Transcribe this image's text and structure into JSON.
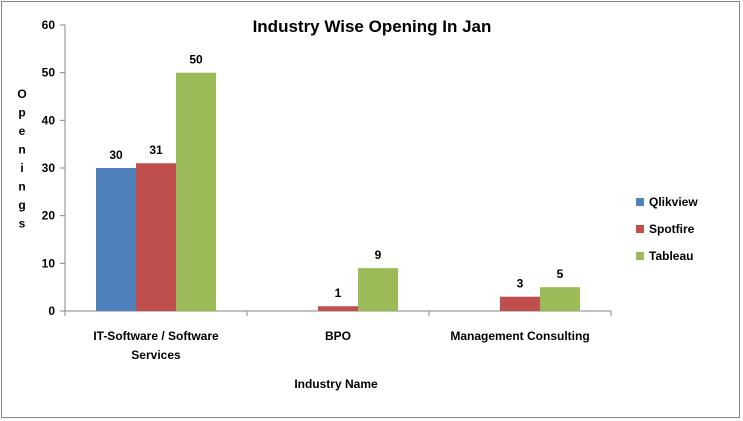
{
  "chart_data": {
    "type": "bar",
    "title": "Industry Wise Opening In Jan",
    "xlabel": "Industry Name",
    "ylabel": "Openings",
    "ylim": [
      0,
      60
    ],
    "yticks": [
      "0",
      "10",
      "20",
      "30",
      "40",
      "50",
      "60"
    ],
    "categories": [
      [
        "IT-Software / Software",
        "Services"
      ],
      [
        "BPO"
      ],
      [
        "Management Consulting"
      ]
    ],
    "series": [
      {
        "name": "Qlikview",
        "color": "#4F81BD",
        "values": [
          30,
          null,
          null
        ]
      },
      {
        "name": "Spotfire",
        "color": "#C0504D",
        "values": [
          31,
          1,
          3
        ]
      },
      {
        "name": "Tableau",
        "color": "#9BBB59",
        "values": [
          50,
          9,
          5
        ]
      }
    ],
    "grid": false,
    "legend": "right"
  }
}
